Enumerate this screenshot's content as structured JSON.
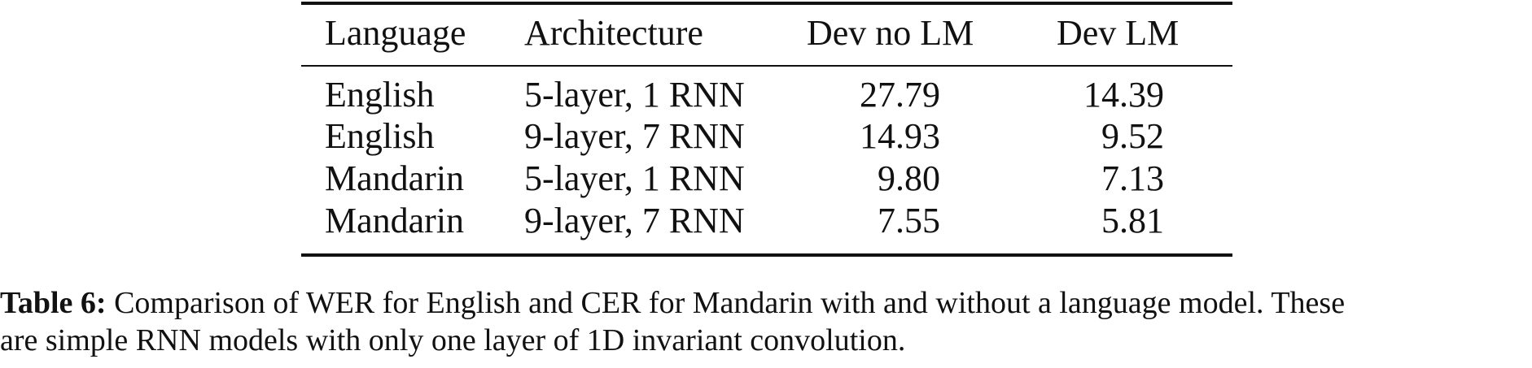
{
  "table": {
    "headers": [
      "Language",
      "Architecture",
      "Dev no LM",
      "Dev LM"
    ],
    "rows": [
      [
        "English",
        "5-layer, 1 RNN",
        "27.79",
        "14.39"
      ],
      [
        "English",
        "9-layer, 7 RNN",
        "14.93",
        "9.52"
      ],
      [
        "Mandarin",
        "5-layer, 1 RNN",
        "9.80",
        "7.13"
      ],
      [
        "Mandarin",
        "9-layer, 7 RNN",
        "7.55",
        "5.81"
      ]
    ]
  },
  "caption": {
    "label": "Table 6:",
    "line1": "Comparison of WER for English and CER for Mandarin with and without a language model. These",
    "line2": "are simple RNN models with only one layer of 1D invariant convolution."
  }
}
